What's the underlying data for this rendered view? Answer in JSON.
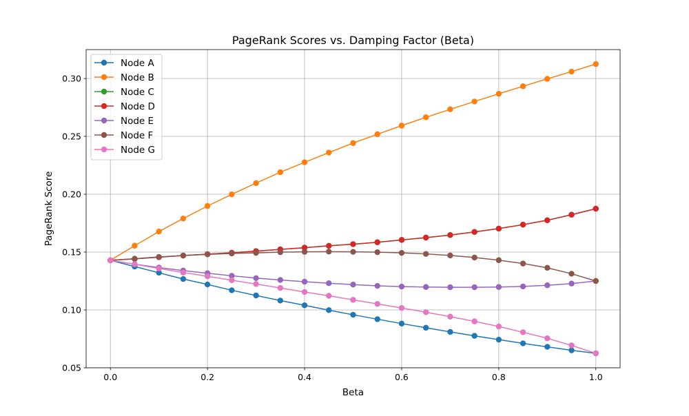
{
  "chart_data": {
    "type": "line",
    "title": "PageRank Scores vs. Damping Factor (Beta)",
    "xlabel": "Beta",
    "ylabel": "PageRank Score",
    "xlim": [
      -0.05,
      1.05
    ],
    "ylim": [
      0.05,
      0.325
    ],
    "xticks": [
      0.0,
      0.2,
      0.4,
      0.6,
      0.8,
      1.0
    ],
    "xtick_labels": [
      "0.0",
      "0.2",
      "0.4",
      "0.6",
      "0.8",
      "1.0"
    ],
    "yticks": [
      0.05,
      0.1,
      0.15,
      0.2,
      0.25,
      0.3
    ],
    "ytick_labels": [
      "0.05",
      "0.10",
      "0.15",
      "0.20",
      "0.25",
      "0.30"
    ],
    "grid": true,
    "legend_position": "top-left",
    "x": [
      0.0,
      0.05,
      0.1,
      0.15,
      0.2,
      0.25,
      0.3,
      0.35,
      0.4,
      0.45,
      0.5,
      0.55,
      0.6,
      0.65,
      0.7,
      0.75,
      0.8,
      0.85,
      0.9,
      0.95,
      1.0
    ],
    "series": [
      {
        "name": "Node A",
        "color": "#1f77b4",
        "values": [
          0.1429,
          0.1375,
          0.1321,
          0.1267,
          0.122,
          0.117,
          0.1125,
          0.1081,
          0.104,
          0.0998,
          0.0958,
          0.092,
          0.0882,
          0.0846,
          0.081,
          0.0776,
          0.0743,
          0.0711,
          0.0681,
          0.0651,
          0.0625
        ]
      },
      {
        "name": "Node B",
        "color": "#ff7f0e",
        "values": [
          0.1429,
          0.1555,
          0.1678,
          0.179,
          0.1898,
          0.1999,
          0.2096,
          0.219,
          0.2276,
          0.236,
          0.2442,
          0.2518,
          0.2593,
          0.2665,
          0.2734,
          0.2801,
          0.2868,
          0.2933,
          0.2997,
          0.306,
          0.3125
        ]
      },
      {
        "name": "Node C",
        "color": "#2ca02c",
        "values": [
          0.1429,
          0.1441,
          0.1456,
          0.147,
          0.1482,
          0.1494,
          0.1508,
          0.1523,
          0.1538,
          0.1554,
          0.1568,
          0.1585,
          0.1605,
          0.1625,
          0.1647,
          0.1674,
          0.1703,
          0.1737,
          0.1775,
          0.1823,
          0.1875
        ]
      },
      {
        "name": "Node D",
        "color": "#d62728",
        "values": [
          0.1429,
          0.1441,
          0.1456,
          0.147,
          0.1482,
          0.1494,
          0.1508,
          0.1523,
          0.1538,
          0.1554,
          0.1568,
          0.1585,
          0.1605,
          0.1625,
          0.1647,
          0.1674,
          0.1703,
          0.1737,
          0.1775,
          0.1823,
          0.1875
        ]
      },
      {
        "name": "Node E",
        "color": "#9467bd",
        "values": [
          0.1429,
          0.1395,
          0.1366,
          0.134,
          0.1317,
          0.1295,
          0.1275,
          0.1259,
          0.1244,
          0.1231,
          0.1219,
          0.1208,
          0.1202,
          0.1198,
          0.1196,
          0.1196,
          0.1198,
          0.1203,
          0.1213,
          0.1228,
          0.125
        ]
      },
      {
        "name": "Node F",
        "color": "#8c564b",
        "values": [
          0.1429,
          0.1443,
          0.1458,
          0.147,
          0.148,
          0.1488,
          0.1493,
          0.1499,
          0.1502,
          0.1504,
          0.1502,
          0.1499,
          0.1493,
          0.1484,
          0.1471,
          0.1453,
          0.143,
          0.1401,
          0.1364,
          0.1313,
          0.125
        ]
      },
      {
        "name": "Node G",
        "color": "#e377c2",
        "values": [
          0.1429,
          0.1395,
          0.1358,
          0.1323,
          0.1291,
          0.1257,
          0.1224,
          0.119,
          0.1155,
          0.1122,
          0.1087,
          0.1052,
          0.1017,
          0.098,
          0.0942,
          0.0901,
          0.0857,
          0.0807,
          0.0755,
          0.0693,
          0.0625
        ]
      }
    ]
  }
}
